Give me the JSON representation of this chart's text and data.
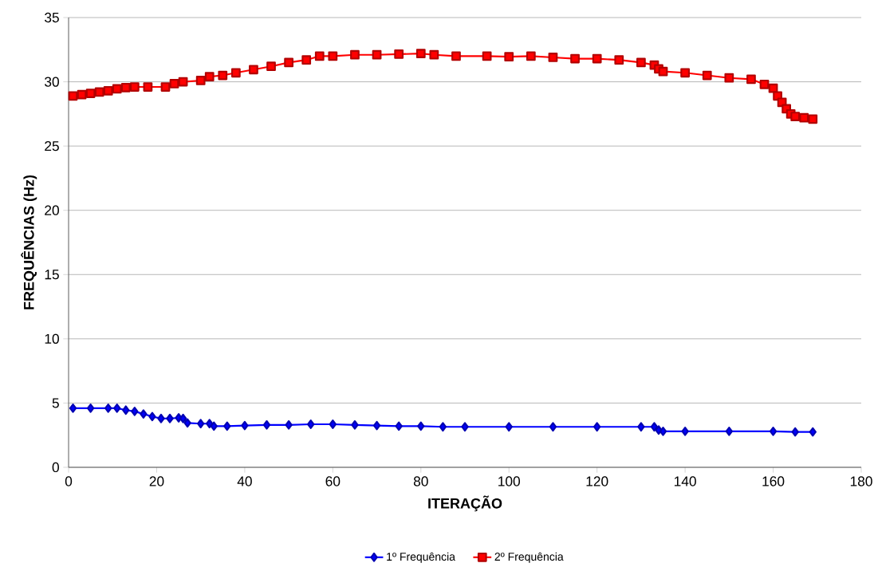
{
  "chart_data": {
    "type": "line",
    "xlabel": "ITERAÇÃO",
    "ylabel": "FREQUÊNCIAS (Hz)",
    "xlim": [
      0,
      180
    ],
    "xticks": [
      0,
      20,
      40,
      60,
      80,
      100,
      120,
      140,
      160,
      180
    ],
    "ylim": [
      0,
      35
    ],
    "yticks": [
      0,
      5,
      10,
      15,
      20,
      25,
      30,
      35
    ],
    "grid": "y",
    "legend": "bottom",
    "line_style": "solid",
    "series": [
      {
        "name": "1º Frequência",
        "color": "#0000ff",
        "marker": "diamond",
        "x": [
          1,
          5,
          9,
          11,
          13,
          15,
          17,
          19,
          21,
          23,
          25,
          26,
          27,
          30,
          32,
          33,
          36,
          40,
          45,
          50,
          55,
          60,
          65,
          70,
          75,
          80,
          85,
          90,
          100,
          110,
          120,
          130,
          133,
          134,
          135,
          140,
          150,
          160,
          165,
          169
        ],
        "values": [
          4.6,
          4.6,
          4.6,
          4.6,
          4.45,
          4.35,
          4.15,
          3.95,
          3.8,
          3.8,
          3.85,
          3.8,
          3.45,
          3.4,
          3.4,
          3.2,
          3.2,
          3.25,
          3.3,
          3.3,
          3.35,
          3.35,
          3.3,
          3.25,
          3.2,
          3.2,
          3.15,
          3.15,
          3.15,
          3.15,
          3.15,
          3.15,
          3.15,
          2.9,
          2.8,
          2.8,
          2.8,
          2.8,
          2.75,
          2.75
        ]
      },
      {
        "name": "2º Frequência",
        "color": "#ff0000",
        "marker": "square",
        "x": [
          1,
          3,
          5,
          7,
          9,
          11,
          13,
          15,
          18,
          22,
          24,
          26,
          30,
          32,
          35,
          38,
          42,
          46,
          50,
          54,
          57,
          60,
          65,
          70,
          75,
          80,
          83,
          88,
          95,
          100,
          105,
          110,
          115,
          120,
          125,
          130,
          133,
          134,
          135,
          140,
          145,
          150,
          155,
          158,
          160,
          161,
          162,
          163,
          164,
          165,
          167,
          169
        ],
        "values": [
          28.9,
          29.0,
          29.1,
          29.2,
          29.3,
          29.45,
          29.55,
          29.6,
          29.6,
          29.6,
          29.85,
          30.0,
          30.1,
          30.4,
          30.5,
          30.7,
          30.95,
          31.2,
          31.5,
          31.7,
          32.0,
          32.0,
          32.1,
          32.1,
          32.15,
          32.2,
          32.1,
          32.0,
          32.0,
          31.95,
          32.0,
          31.9,
          31.8,
          31.8,
          31.7,
          31.5,
          31.3,
          31.0,
          30.8,
          30.7,
          30.5,
          30.3,
          30.2,
          29.8,
          29.5,
          28.9,
          28.4,
          27.9,
          27.5,
          27.3,
          27.2,
          27.1
        ]
      }
    ]
  }
}
